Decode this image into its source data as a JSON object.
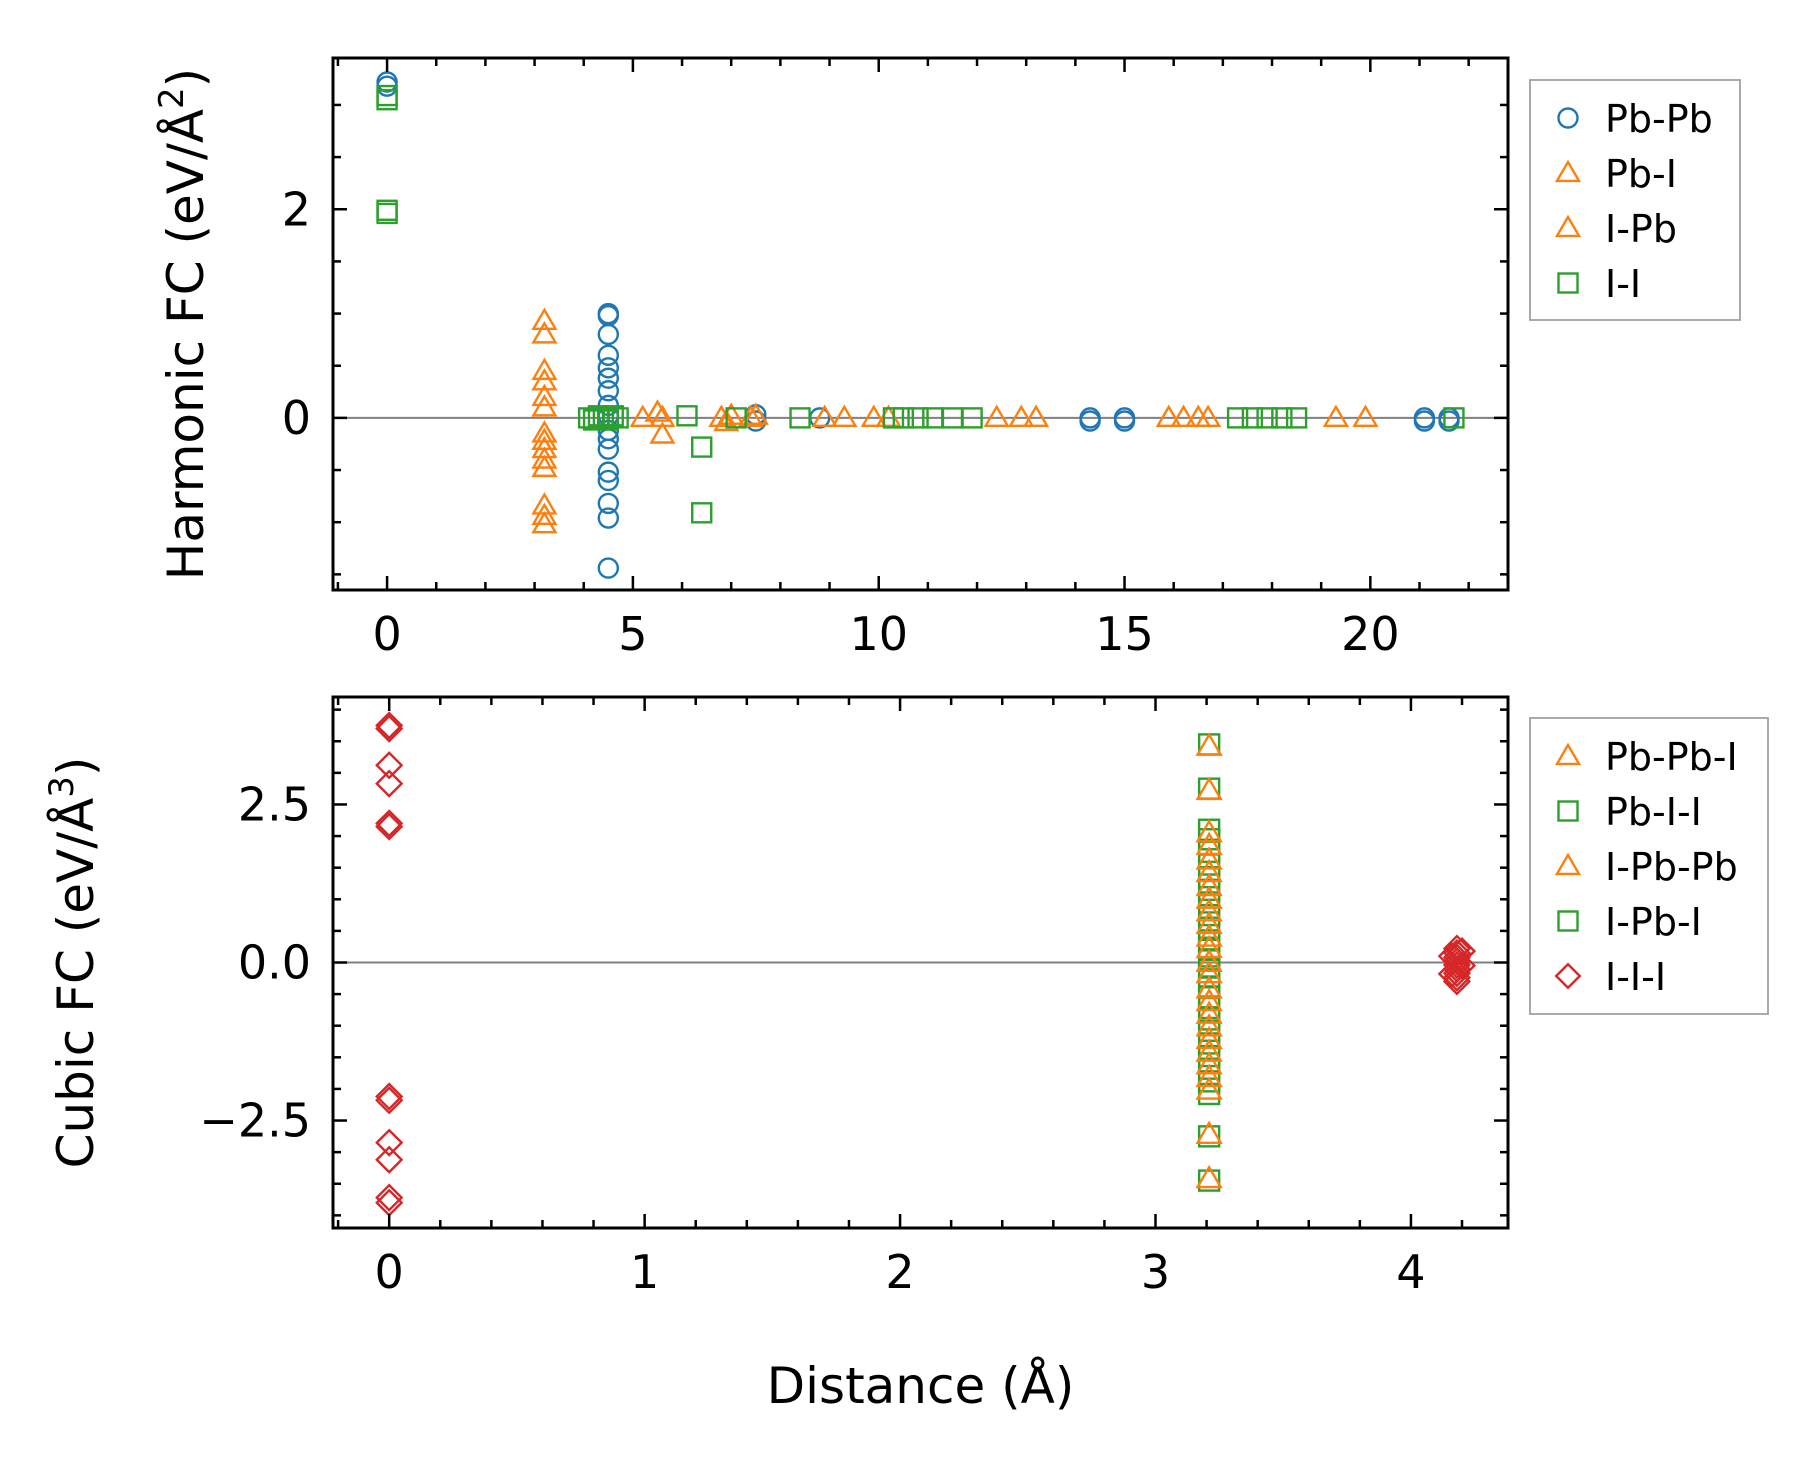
{
  "colors": {
    "Pb-Pb": "#1f77b4",
    "orange": "#ff7f0e",
    "green": "#2ca02c",
    "red": "#d62728",
    "zero_line": "#808080",
    "legend_frame": "#a0a0a0"
  },
  "chart_data": [
    {
      "type": "scatter",
      "panel": "top",
      "ylabel_main": "Harmonic FC (eV/Å",
      "ylabel_exp": "2",
      "ylabel_close": ")",
      "xlabel": "",
      "xlim": [
        -1.1,
        22.8
      ],
      "ylim": [
        -1.65,
        3.45
      ],
      "xticks": [
        0,
        5,
        10,
        15,
        20
      ],
      "xtick_labels": [
        "0",
        "5",
        "10",
        "15",
        "20"
      ],
      "x_minor_step": 1,
      "yticks": [
        0,
        2
      ],
      "ytick_labels": [
        "0",
        "2"
      ],
      "y_minor_step": 0.5,
      "zero_line": true,
      "legend_position": "outside-right-top",
      "legend": [
        {
          "label": "Pb-Pb",
          "marker": "circle",
          "color_key": "Pb-Pb"
        },
        {
          "label": "Pb-I",
          "marker": "triangle",
          "color_key": "orange"
        },
        {
          "label": "I-Pb",
          "marker": "triangle",
          "color_key": "orange"
        },
        {
          "label": "I-I",
          "marker": "square",
          "color_key": "green"
        }
      ],
      "series": [
        {
          "name": "Pb-Pb",
          "marker": "circle",
          "color_key": "Pb-Pb",
          "points": [
            [
              0,
              3.22
            ],
            [
              0,
              3.18
            ],
            [
              4.5,
              1.0
            ],
            [
              4.5,
              0.98
            ],
            [
              4.5,
              0.8
            ],
            [
              4.5,
              0.6
            ],
            [
              4.5,
              0.48
            ],
            [
              4.5,
              0.38
            ],
            [
              4.5,
              0.26
            ],
            [
              4.5,
              0.12
            ],
            [
              4.5,
              0.02
            ],
            [
              4.5,
              -0.12
            ],
            [
              4.5,
              -0.2
            ],
            [
              4.5,
              -0.3
            ],
            [
              4.5,
              -0.52
            ],
            [
              4.5,
              -0.6
            ],
            [
              4.5,
              -0.82
            ],
            [
              4.5,
              -0.96
            ],
            [
              4.5,
              -1.44
            ],
            [
              7.5,
              0.03
            ],
            [
              7.5,
              -0.03
            ],
            [
              8.8,
              0.0
            ],
            [
              14.3,
              0.0
            ],
            [
              14.3,
              -0.03
            ],
            [
              15.0,
              0.0
            ],
            [
              15.0,
              -0.03
            ],
            [
              21.1,
              0.0
            ],
            [
              21.1,
              -0.03
            ],
            [
              21.6,
              0.0
            ],
            [
              21.6,
              -0.03
            ]
          ]
        },
        {
          "name": "Pb-I / I-Pb",
          "marker": "triangle",
          "color_key": "orange",
          "points": [
            [
              3.2,
              0.93
            ],
            [
              3.2,
              0.8
            ],
            [
              3.2,
              0.45
            ],
            [
              3.2,
              0.35
            ],
            [
              3.2,
              0.2
            ],
            [
              3.2,
              0.1
            ],
            [
              3.2,
              -0.15
            ],
            [
              3.2,
              -0.22
            ],
            [
              3.2,
              -0.3
            ],
            [
              3.2,
              -0.4
            ],
            [
              3.2,
              -0.48
            ],
            [
              3.2,
              -0.84
            ],
            [
              3.2,
              -0.94
            ],
            [
              3.2,
              -1.02
            ],
            [
              5.2,
              0.0
            ],
            [
              5.5,
              0.05
            ],
            [
              5.6,
              0.0
            ],
            [
              5.6,
              -0.16
            ],
            [
              6.8,
              0.0
            ],
            [
              6.9,
              -0.04
            ],
            [
              7.0,
              0.02
            ],
            [
              7.4,
              0.0
            ],
            [
              7.5,
              0.02
            ],
            [
              8.9,
              0.0
            ],
            [
              9.3,
              0.0
            ],
            [
              9.9,
              0.0
            ],
            [
              10.2,
              0.0
            ],
            [
              12.4,
              0.0
            ],
            [
              12.9,
              0.0
            ],
            [
              13.2,
              0.0
            ],
            [
              15.9,
              0.0
            ],
            [
              16.2,
              0.0
            ],
            [
              16.5,
              0.0
            ],
            [
              16.7,
              0.0
            ],
            [
              19.3,
              0.0
            ],
            [
              19.9,
              0.0
            ]
          ]
        },
        {
          "name": "I-I",
          "marker": "square",
          "color_key": "green",
          "points": [
            [
              0,
              3.09
            ],
            [
              0,
              3.05
            ],
            [
              0,
              1.99
            ],
            [
              0,
              1.96
            ],
            [
              4.1,
              0.0
            ],
            [
              4.2,
              -0.02
            ],
            [
              4.3,
              0.02
            ],
            [
              4.4,
              0.0
            ],
            [
              4.5,
              -0.02
            ],
            [
              4.6,
              0.02
            ],
            [
              4.7,
              0.0
            ],
            [
              6.1,
              0.02
            ],
            [
              6.4,
              -0.28
            ],
            [
              6.4,
              -0.91
            ],
            [
              7.1,
              0.0
            ],
            [
              8.4,
              0.0
            ],
            [
              10.3,
              0.0
            ],
            [
              10.5,
              0.0
            ],
            [
              10.8,
              0.0
            ],
            [
              11.1,
              0.0
            ],
            [
              11.5,
              0.0
            ],
            [
              11.9,
              0.0
            ],
            [
              17.3,
              0.0
            ],
            [
              17.6,
              0.0
            ],
            [
              17.9,
              0.0
            ],
            [
              18.2,
              0.0
            ],
            [
              18.5,
              0.0
            ],
            [
              21.7,
              0.0
            ]
          ]
        }
      ]
    },
    {
      "type": "scatter",
      "panel": "bottom",
      "ylabel_main": "Cubic FC (eV/Å",
      "ylabel_exp": "3",
      "ylabel_close": ")",
      "xlabel": "Distance (Å)",
      "xlim": [
        -0.22,
        4.38
      ],
      "ylim": [
        -4.2,
        4.2
      ],
      "xticks": [
        0,
        1,
        2,
        3,
        4
      ],
      "xtick_labels": [
        "0",
        "1",
        "2",
        "3",
        "4"
      ],
      "x_minor_step": 0.2,
      "yticks": [
        -2.5,
        0.0,
        2.5
      ],
      "ytick_labels": [
        "−2.5",
        "0.0",
        "2.5"
      ],
      "y_minor_step": 0.5,
      "zero_line": true,
      "legend_position": "outside-right-top",
      "legend": [
        {
          "label": "Pb-Pb-I",
          "marker": "triangle",
          "color_key": "orange"
        },
        {
          "label": "Pb-I-I",
          "marker": "square",
          "color_key": "green"
        },
        {
          "label": "I-Pb-Pb",
          "marker": "triangle",
          "color_key": "orange"
        },
        {
          "label": "I-Pb-I",
          "marker": "square",
          "color_key": "green"
        },
        {
          "label": "I-I-I",
          "marker": "diamond",
          "color_key": "red"
        }
      ],
      "series": [
        {
          "name": "I-I-I",
          "marker": "diamond",
          "color_key": "red",
          "points": [
            [
              0,
              3.75
            ],
            [
              0,
              3.7
            ],
            [
              0,
              3.12
            ],
            [
              0,
              2.83
            ],
            [
              0,
              2.2
            ],
            [
              0,
              2.15
            ],
            [
              0,
              -2.12
            ],
            [
              0,
              -2.18
            ],
            [
              0,
              -2.85
            ],
            [
              0,
              -3.12
            ],
            [
              0,
              -3.72
            ],
            [
              0,
              -3.8
            ],
            [
              4.18,
              0.22
            ],
            [
              4.18,
              0.15
            ],
            [
              4.18,
              0.08
            ],
            [
              4.18,
              0.02
            ],
            [
              4.18,
              -0.04
            ],
            [
              4.18,
              -0.1
            ],
            [
              4.18,
              -0.17
            ],
            [
              4.18,
              -0.24
            ],
            [
              4.18,
              -0.3
            ],
            [
              4.16,
              0.1
            ],
            [
              4.2,
              -0.05
            ],
            [
              4.16,
              -0.18
            ],
            [
              4.2,
              0.18
            ]
          ]
        },
        {
          "name": "Pb-I-I / I-Pb-I",
          "marker": "square",
          "color_key": "green",
          "points": [
            [
              3.21,
              3.45
            ],
            [
              3.21,
              2.75
            ],
            [
              3.21,
              2.1
            ],
            [
              3.21,
              1.95
            ],
            [
              3.21,
              1.75
            ],
            [
              3.21,
              1.55
            ],
            [
              3.21,
              1.35
            ],
            [
              3.21,
              1.15
            ],
            [
              3.21,
              0.95
            ],
            [
              3.21,
              0.75
            ],
            [
              3.21,
              0.55
            ],
            [
              3.21,
              0.35
            ],
            [
              3.21,
              0.2
            ],
            [
              3.21,
              0.05
            ],
            [
              3.21,
              -0.08
            ],
            [
              3.21,
              -0.22
            ],
            [
              3.21,
              -0.38
            ],
            [
              3.21,
              -0.55
            ],
            [
              3.21,
              -0.72
            ],
            [
              3.21,
              -0.9
            ],
            [
              3.21,
              -1.08
            ],
            [
              3.21,
              -1.28
            ],
            [
              3.21,
              -1.48
            ],
            [
              3.21,
              -1.68
            ],
            [
              3.21,
              -1.88
            ],
            [
              3.21,
              -2.08
            ],
            [
              3.21,
              -2.75
            ],
            [
              3.21,
              -3.45
            ]
          ]
        },
        {
          "name": "Pb-Pb-I / I-Pb-Pb",
          "marker": "triangle",
          "color_key": "orange",
          "points": [
            [
              3.21,
              3.42
            ],
            [
              3.21,
              2.72
            ],
            [
              3.21,
              2.05
            ],
            [
              3.21,
              1.85
            ],
            [
              3.21,
              1.62
            ],
            [
              3.21,
              1.42
            ],
            [
              3.21,
              1.2
            ],
            [
              3.21,
              1.0
            ],
            [
              3.21,
              0.8
            ],
            [
              3.21,
              0.6
            ],
            [
              3.21,
              0.4
            ],
            [
              3.21,
              0.22
            ],
            [
              3.21,
              0.0
            ],
            [
              3.21,
              -0.18
            ],
            [
              3.21,
              -0.42
            ],
            [
              3.21,
              -0.62
            ],
            [
              3.21,
              -0.82
            ],
            [
              3.21,
              -1.02
            ],
            [
              3.21,
              -1.22
            ],
            [
              3.21,
              -1.42
            ],
            [
              3.21,
              -1.62
            ],
            [
              3.21,
              -1.82
            ],
            [
              3.21,
              -2.02
            ],
            [
              3.21,
              -2.72
            ],
            [
              3.21,
              -3.42
            ]
          ]
        }
      ]
    }
  ]
}
